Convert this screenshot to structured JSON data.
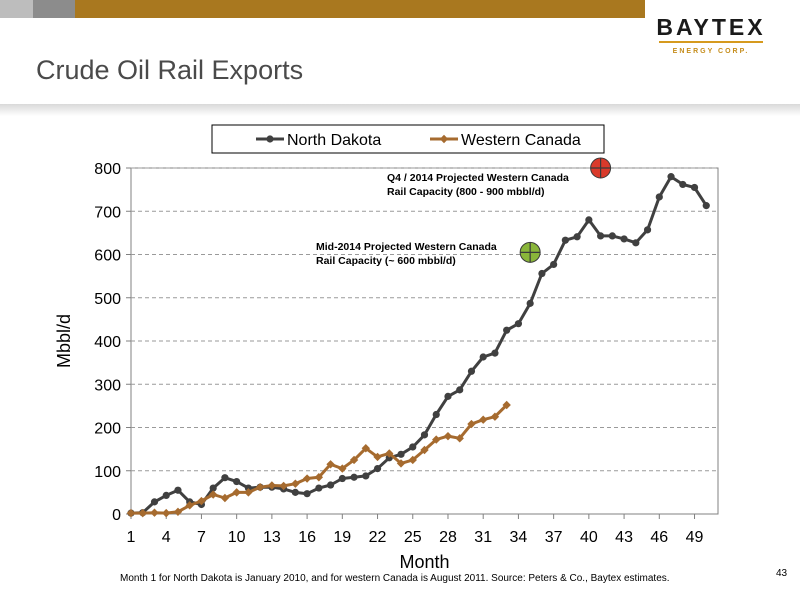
{
  "header": {
    "title": "Crude Oil Rail Exports",
    "logo_main": "BAYTEX",
    "logo_sub": "ENERGY CORP."
  },
  "footer": {
    "footnote": "Month 1 for North Dakota is January 2010, and for western Canada is August 2011. Source: Peters & Co., Baytex estimates.",
    "page_number": "43"
  },
  "chart_data": {
    "type": "line",
    "xlabel": "Month",
    "ylabel": "Mbbl/d",
    "xlim": [
      1,
      51
    ],
    "ylim": [
      0,
      800
    ],
    "x_ticks": [
      1,
      4,
      7,
      10,
      13,
      16,
      19,
      22,
      25,
      28,
      31,
      34,
      37,
      40,
      43,
      46,
      49
    ],
    "y_ticks": [
      0,
      100,
      200,
      300,
      400,
      500,
      600,
      700,
      800
    ],
    "grid": true,
    "legend_position": "top",
    "series": [
      {
        "name": "North Dakota",
        "color": "#404040",
        "marker": "circle",
        "x": [
          1,
          2,
          3,
          4,
          5,
          6,
          7,
          8,
          9,
          10,
          11,
          12,
          13,
          14,
          15,
          16,
          17,
          18,
          19,
          20,
          21,
          22,
          23,
          24,
          25,
          26,
          27,
          28,
          29,
          30,
          31,
          32,
          33,
          34,
          35,
          36,
          37,
          38,
          39,
          40,
          41,
          42,
          43,
          44,
          45,
          46,
          47,
          48,
          49,
          50
        ],
        "y": [
          2,
          3,
          28,
          43,
          55,
          28,
          22,
          60,
          84,
          75,
          60,
          62,
          62,
          58,
          50,
          47,
          60,
          67,
          82,
          85,
          88,
          105,
          130,
          138,
          155,
          183,
          230,
          272,
          287,
          330,
          363,
          372,
          425,
          440,
          487,
          556,
          577,
          633,
          641,
          680,
          643,
          643,
          636,
          627,
          657,
          733,
          780,
          762,
          755,
          713
        ]
      },
      {
        "name": "Western Canada",
        "color": "#a66b2f",
        "marker": "diamond",
        "x": [
          1,
          2,
          3,
          4,
          5,
          6,
          7,
          8,
          9,
          10,
          11,
          12,
          13,
          14,
          15,
          16,
          17,
          18,
          19,
          20,
          21,
          22,
          23,
          24,
          25,
          26,
          27,
          28,
          29,
          30,
          31,
          32,
          33
        ],
        "y": [
          2,
          2,
          3,
          2,
          5,
          20,
          30,
          45,
          37,
          50,
          50,
          62,
          66,
          65,
          70,
          82,
          85,
          115,
          105,
          125,
          152,
          132,
          140,
          117,
          125,
          148,
          172,
          180,
          175,
          208,
          218,
          225,
          252
        ]
      }
    ],
    "annotations": [
      {
        "line1": "Q4 / 2014 Projected Western Canada",
        "line2": "Rail Capacity (800 - 900 mbbl/d)",
        "marker_x": 41,
        "marker_y": 800,
        "marker_color": "#d93a2b"
      },
      {
        "line1": "Mid-2014 Projected Western Canada",
        "line2": "Rail  Capacity (~ 600 mbbl/d)",
        "marker_x": 35,
        "marker_y": 605,
        "marker_color": "#8ab63a"
      }
    ]
  }
}
